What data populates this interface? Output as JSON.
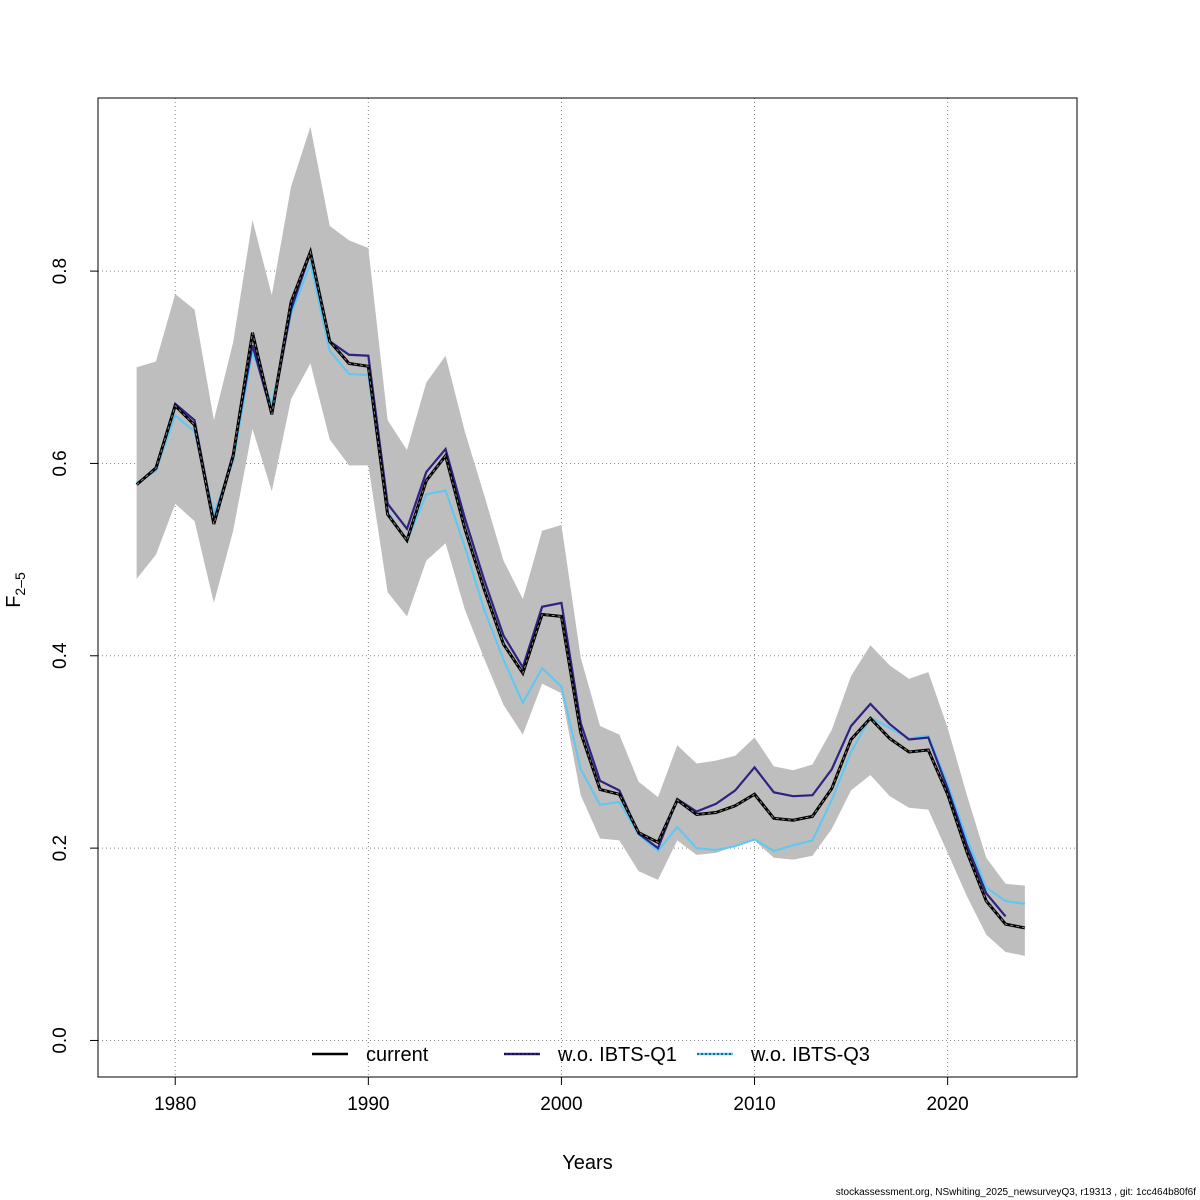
{
  "chart_data": {
    "type": "line",
    "xlabel": "Years",
    "ylabel": "F",
    "ylabel_sub": "2–5",
    "xlim": [
      1976,
      2026.7
    ],
    "ylim": [
      -0.038,
      0.98
    ],
    "x_ticks": [
      1980,
      1990,
      2000,
      2010,
      2020
    ],
    "y_ticks": [
      0.0,
      0.2,
      0.4,
      0.6,
      0.8
    ],
    "y_tick_labels": [
      "0.0",
      "0.2",
      "0.4",
      "0.6",
      "0.8"
    ],
    "grid": true,
    "legend_position": "bottom",
    "colors": {
      "band": "#bebebe",
      "current": "#000000",
      "wo_q1": "#2e2383",
      "wo_q3": "#5bc8f5",
      "grid": "#888888"
    },
    "confidence_band": {
      "years": [
        1978,
        1979,
        1980,
        1981,
        1982,
        1983,
        1984,
        1985,
        1986,
        1987,
        1988,
        1989,
        1990,
        1991,
        1992,
        1993,
        1994,
        1995,
        1996,
        1997,
        1998,
        1999,
        2000,
        2001,
        2002,
        2003,
        2004,
        2005,
        2006,
        2007,
        2008,
        2009,
        2010,
        2011,
        2012,
        2013,
        2014,
        2015,
        2016,
        2017,
        2018,
        2019,
        2020,
        2021,
        2022,
        2023,
        2024
      ],
      "lower": [
        0.48,
        0.505,
        0.558,
        0.54,
        0.455,
        0.53,
        0.636,
        0.571,
        0.667,
        0.704,
        0.625,
        0.598,
        0.598,
        0.466,
        0.441,
        0.499,
        0.517,
        0.448,
        0.397,
        0.349,
        0.318,
        0.371,
        0.361,
        0.255,
        0.21,
        0.208,
        0.176,
        0.167,
        0.208,
        0.193,
        0.195,
        0.202,
        0.208,
        0.19,
        0.188,
        0.192,
        0.22,
        0.26,
        0.276,
        0.254,
        0.242,
        0.24,
        0.195,
        0.15,
        0.11,
        0.092,
        0.088
      ],
      "upper": [
        0.7,
        0.706,
        0.776,
        0.76,
        0.645,
        0.726,
        0.853,
        0.775,
        0.888,
        0.95,
        0.847,
        0.832,
        0.824,
        0.645,
        0.614,
        0.684,
        0.712,
        0.633,
        0.567,
        0.499,
        0.459,
        0.53,
        0.536,
        0.398,
        0.327,
        0.318,
        0.269,
        0.253,
        0.307,
        0.288,
        0.291,
        0.296,
        0.315,
        0.285,
        0.281,
        0.287,
        0.323,
        0.379,
        0.411,
        0.39,
        0.376,
        0.383,
        0.325,
        0.255,
        0.19,
        0.163,
        0.161
      ]
    },
    "series": [
      {
        "name": "current",
        "years": [
          1978,
          1979,
          1980,
          1981,
          1982,
          1983,
          1984,
          1985,
          1986,
          1987,
          1988,
          1989,
          1990,
          1991,
          1992,
          1993,
          1994,
          1995,
          1996,
          1997,
          1998,
          1999,
          2000,
          2001,
          2002,
          2003,
          2004,
          2005,
          2006,
          2007,
          2008,
          2009,
          2010,
          2011,
          2012,
          2013,
          2014,
          2015,
          2016,
          2017,
          2018,
          2019,
          2020,
          2021,
          2022,
          2023,
          2024
        ],
        "values": [
          0.578,
          0.595,
          0.66,
          0.64,
          0.537,
          0.608,
          0.736,
          0.651,
          0.768,
          0.82,
          0.727,
          0.704,
          0.701,
          0.547,
          0.52,
          0.582,
          0.608,
          0.532,
          0.469,
          0.412,
          0.382,
          0.443,
          0.441,
          0.32,
          0.261,
          0.256,
          0.216,
          0.206,
          0.25,
          0.235,
          0.237,
          0.244,
          0.256,
          0.231,
          0.229,
          0.233,
          0.262,
          0.313,
          0.335,
          0.314,
          0.3,
          0.302,
          0.256,
          0.196,
          0.145,
          0.121,
          0.117
        ]
      },
      {
        "name": "w.o. IBTS-Q1",
        "years": [
          1978,
          1979,
          1980,
          1981,
          1982,
          1983,
          1984,
          1985,
          1986,
          1987,
          1988,
          1989,
          1990,
          1991,
          1992,
          1993,
          1994,
          1995,
          1996,
          1997,
          1998,
          1999,
          2000,
          2001,
          2002,
          2003,
          2004,
          2005,
          2006,
          2007,
          2008,
          2009,
          2010,
          2011,
          2012,
          2013,
          2014,
          2015,
          2016,
          2017,
          2018,
          2019,
          2020,
          2021,
          2022,
          2023
        ],
        "values": [
          0.578,
          0.596,
          0.662,
          0.645,
          0.54,
          0.61,
          0.723,
          0.651,
          0.76,
          0.819,
          0.727,
          0.713,
          0.712,
          0.558,
          0.532,
          0.591,
          0.615,
          0.543,
          0.479,
          0.421,
          0.388,
          0.451,
          0.455,
          0.33,
          0.27,
          0.26,
          0.215,
          0.2,
          0.251,
          0.238,
          0.246,
          0.26,
          0.284,
          0.258,
          0.254,
          0.255,
          0.282,
          0.327,
          0.35,
          0.329,
          0.313,
          0.315,
          0.262,
          0.203,
          0.153,
          0.129
        ]
      },
      {
        "name": "w.o. IBTS-Q3",
        "years": [
          1978,
          1979,
          1980,
          1981,
          1982,
          1983,
          1984,
          1985,
          1986,
          1987,
          1988,
          1989,
          1990,
          1991,
          1992,
          1993,
          1994,
          1995,
          1996,
          1997,
          1998,
          1999,
          2000,
          2001,
          2002,
          2003,
          2004,
          2005,
          2006,
          2007,
          2008,
          2009,
          2010,
          2011,
          2012,
          2013,
          2014,
          2015,
          2016,
          2017,
          2018,
          2019,
          2020,
          2021,
          2022,
          2023,
          2024
        ],
        "values": [
          0.58,
          0.592,
          0.65,
          0.633,
          0.548,
          0.602,
          0.716,
          0.662,
          0.755,
          0.808,
          0.717,
          0.693,
          0.692,
          0.55,
          0.519,
          0.568,
          0.572,
          0.513,
          0.448,
          0.396,
          0.351,
          0.387,
          0.368,
          0.282,
          0.245,
          0.248,
          0.214,
          0.197,
          0.222,
          0.2,
          0.198,
          0.202,
          0.209,
          0.197,
          0.203,
          0.208,
          0.25,
          0.3,
          0.336,
          0.325,
          0.314,
          0.317,
          0.267,
          0.21,
          0.159,
          0.145,
          0.142
        ]
      }
    ]
  },
  "footer_text": "stockassessment.org, NSwhiting_2025_newsurveyQ3, r19313 , git: 1cc464b80f6f"
}
